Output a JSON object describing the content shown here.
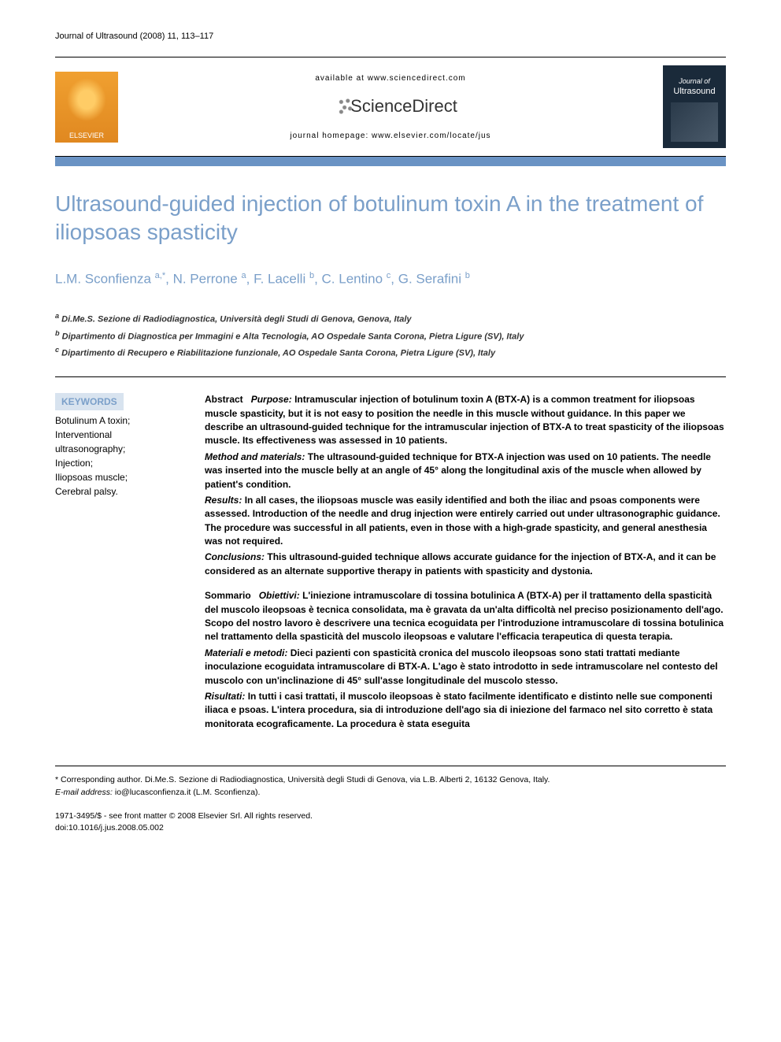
{
  "journal_ref": "Journal of Ultrasound (2008) 11, 113–117",
  "banner": {
    "elsevier_label": "ELSEVIER",
    "available_text": "available at www.sciencedirect.com",
    "sciencedirect_label": "ScienceDirect",
    "homepage_text": "journal homepage: www.elsevier.com/locate/jus",
    "cover_title1": "Journal of",
    "cover_title2": "Ultrasound"
  },
  "colors": {
    "accent": "#7a9fc9",
    "bar": "#6a93c4",
    "keywords_bg": "#d8e3ef"
  },
  "title": "Ultrasound-guided injection of botulinum toxin A in the treatment of iliopsoas spasticity",
  "authors_html": "L.M. Sconfienza ",
  "authors": [
    {
      "name": "L.M. Sconfienza",
      "affil": "a,*"
    },
    {
      "name": "N. Perrone",
      "affil": "a"
    },
    {
      "name": "F. Lacelli",
      "affil": "b"
    },
    {
      "name": "C. Lentino",
      "affil": "c"
    },
    {
      "name": "G. Serafini",
      "affil": "b"
    }
  ],
  "affiliations": {
    "a": "Di.Me.S. Sezione di Radiodiagnostica, Università degli Studi di Genova, Genova, Italy",
    "b": "Dipartimento di Diagnostica per Immagini e Alta Tecnologia, AO Ospedale Santa Corona, Pietra Ligure (SV), Italy",
    "c": "Dipartimento di Recupero e Riabilitazione funzionale, AO Ospedale Santa Corona, Pietra Ligure (SV), Italy"
  },
  "keywords": {
    "title": "KEYWORDS",
    "items": "Botulinum A toxin;\nInterventional ultrasonography;\nInjection;\nIliopsoas muscle;\nCerebral palsy."
  },
  "abstract_en": {
    "label": "Abstract",
    "purpose_label": "Purpose:",
    "purpose": "Intramuscular injection of botulinum toxin A (BTX-A) is a common treatment for iliopsoas muscle spasticity, but it is not easy to position the needle in this muscle without guidance. In this paper we describe an ultrasound-guided technique for the intramuscular injection of BTX-A to treat spasticity of the iliopsoas muscle. Its effectiveness was assessed in 10 patients.",
    "methods_label": "Method and materials:",
    "methods": "The ultrasound-guided technique for BTX-A injection was used on 10 patients. The needle was inserted into the muscle belly at an angle of 45° along the longitudinal axis of the muscle when allowed by patient's condition.",
    "results_label": "Results:",
    "results": "In all cases, the iliopsoas muscle was easily identified and both the iliac and psoas components were assessed. Introduction of the needle and drug injection were entirely carried out under ultrasonographic guidance. The procedure was successful in all patients, even in those with a high-grade spasticity, and general anesthesia was not required.",
    "conclusions_label": "Conclusions:",
    "conclusions": "This ultrasound-guided technique allows accurate guidance for the injection of BTX-A, and it can be considered as an alternate supportive therapy in patients with spasticity and dystonia."
  },
  "abstract_it": {
    "label": "Sommario",
    "obiettivi_label": "Obiettivi:",
    "obiettivi": "L'iniezione intramuscolare di tossina botulinica A (BTX-A) per il trattamento della spasticità del muscolo ileopsoas è tecnica consolidata, ma è gravata da un'alta difficoltà nel preciso posizionamento dell'ago. Scopo del nostro lavoro è descrivere una tecnica ecoguidata per l'introduzione intramuscolare di tossina botulinica nel trattamento della spasticità del muscolo ileopsoas e valutare l'efficacia terapeutica di questa terapia.",
    "materiali_label": "Materiali e metodi:",
    "materiali": "Dieci pazienti con spasticità cronica del muscolo ileopsoas sono stati trattati mediante inoculazione ecoguidata intramuscolare di BTX-A. L'ago è stato introdotto in sede intramuscolare nel contesto del muscolo con un'inclinazione di 45° sull'asse longitudinale del muscolo stesso.",
    "risultati_label": "Risultati:",
    "risultati": "In tutti i casi trattati, il muscolo ileopsoas è stato facilmente identificato e distinto nelle sue componenti iliaca e psoas. L'intera procedura, sia di introduzione dell'ago sia di iniezione del farmaco nel sito corretto è stata monitorata ecograficamente. La procedura è stata eseguita"
  },
  "corresponding": {
    "star": "*",
    "text": "Corresponding author. Di.Me.S. Sezione di Radiodiagnostica, Università degli Studi di Genova, via L.B. Alberti 2, 16132 Genova, Italy.",
    "email_label": "E-mail address:",
    "email": "io@lucasconfienza.it",
    "email_author": "(L.M. Sconfienza)."
  },
  "footer": {
    "issn_line": "1971-3495/$ - see front matter © 2008 Elsevier Srl. All rights reserved.",
    "doi_line": "doi:10.1016/j.jus.2008.05.002"
  }
}
